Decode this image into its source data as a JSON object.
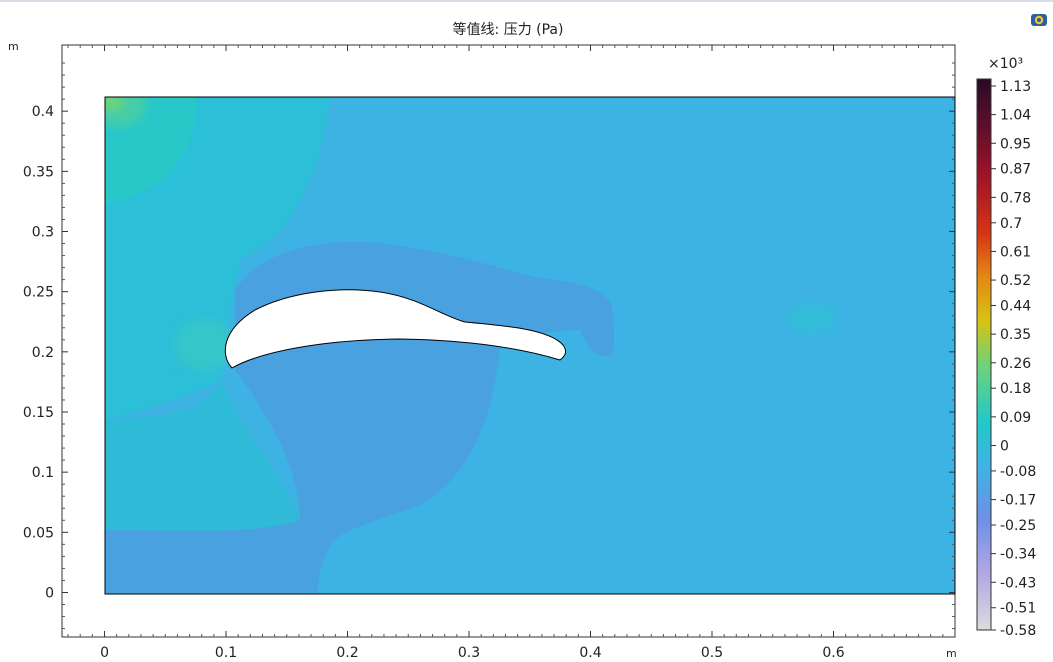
{
  "chart_data": {
    "type": "heatmap",
    "title": "等值线: 压力 (Pa)",
    "xlabel_unit": "m",
    "ylabel_unit": "m",
    "xlim": [
      -0.035,
      0.7
    ],
    "ylim": [
      -0.037,
      0.455
    ],
    "x_ticks": [
      0,
      0.1,
      0.2,
      0.3,
      0.4,
      0.5,
      0.6
    ],
    "x_tick_labels": [
      "0",
      "0.1",
      "0.2",
      "0.3",
      "0.4",
      "0.5",
      "0.6"
    ],
    "y_ticks": [
      0,
      0.05,
      0.1,
      0.15,
      0.2,
      0.25,
      0.3,
      0.35,
      0.4
    ],
    "y_tick_labels": [
      "0",
      "0.05",
      "0.1",
      "0.15",
      "0.2",
      "0.25",
      "0.3",
      "0.35",
      "0.4"
    ],
    "domain": {
      "x": [
        0,
        0.7
      ],
      "y": [
        0,
        0.41
      ]
    },
    "colorbar": {
      "multiplier_label": "×10³",
      "range": [
        -0.58,
        1.13
      ],
      "tick_values": [
        1.13,
        1.04,
        0.95,
        0.87,
        0.78,
        0.7,
        0.61,
        0.52,
        0.44,
        0.35,
        0.26,
        0.18,
        0.09,
        0,
        -0.08,
        -0.17,
        -0.25,
        -0.34,
        -0.43,
        -0.51,
        -0.58
      ],
      "tick_labels": [
        "1.13",
        "1.04",
        "0.95",
        "0.87",
        "0.78",
        "0.7",
        "0.61",
        "0.52",
        "0.44",
        "0.35",
        "0.26",
        "0.18",
        "0.09",
        "0",
        "-0.08",
        "-0.17",
        "-0.25",
        "-0.34",
        "-0.43",
        "-0.51",
        "-0.58"
      ]
    },
    "colors": {
      "background_level": "#3db3e3",
      "low_pressure": "#4aa1e0",
      "mid_cyan": "#2bc4d8",
      "high_cyan": "#25ccc3",
      "teal_peak": "#3fd1a6",
      "green_peak": "#67d276"
    }
  },
  "icons": {
    "corner": "camera-lens-icon"
  }
}
